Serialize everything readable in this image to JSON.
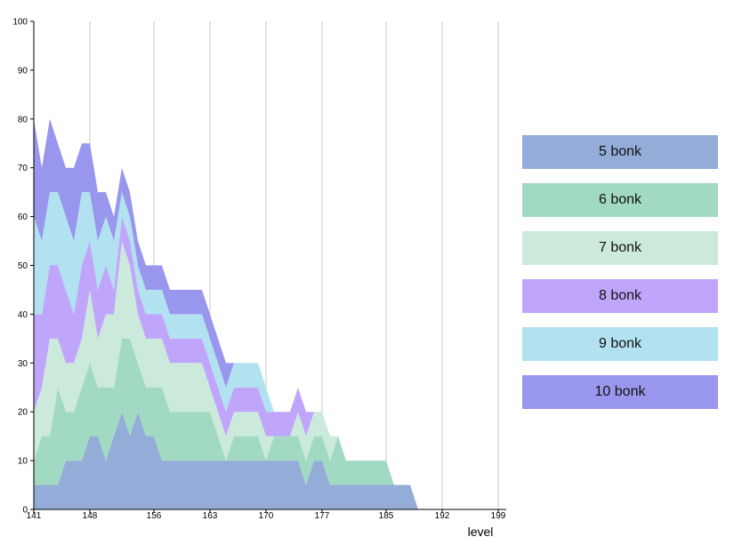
{
  "chart_data": {
    "type": "area",
    "stacked": true,
    "title": "",
    "xlabel": "level",
    "ylabel": "",
    "xlim": [
      141,
      200
    ],
    "ylim": [
      0,
      100
    ],
    "x_ticks": [
      141,
      148,
      156,
      163,
      170,
      177,
      185,
      192,
      199
    ],
    "y_ticks": [
      0,
      10,
      20,
      30,
      40,
      50,
      60,
      70,
      80,
      90,
      100
    ],
    "grid": "vertical lines at x ticks",
    "legend_position": "right",
    "x": [
      141,
      142,
      143,
      144,
      145,
      146,
      147,
      148,
      149,
      150,
      151,
      152,
      153,
      154,
      155,
      156,
      157,
      158,
      159,
      160,
      161,
      162,
      163,
      164,
      165,
      166,
      167,
      168,
      169,
      170,
      171,
      172,
      173,
      174,
      175,
      176,
      177,
      178,
      179,
      180,
      181,
      182,
      183,
      184,
      185,
      186,
      187,
      188,
      189
    ],
    "series": [
      {
        "name": "5 bonk",
        "color": "#93acd8",
        "values": [
          5,
          5,
          5,
          5,
          10,
          10,
          10,
          15,
          15,
          10,
          15,
          20,
          15,
          20,
          15,
          15,
          10,
          10,
          10,
          10,
          10,
          10,
          10,
          10,
          10,
          10,
          10,
          10,
          10,
          10,
          10,
          10,
          10,
          10,
          5,
          10,
          10,
          5,
          5,
          5,
          5,
          5,
          5,
          5,
          5,
          5,
          5,
          5,
          0
        ]
      },
      {
        "name": "6 bonk",
        "color": "#a2d9c3",
        "values": [
          5,
          10,
          10,
          20,
          10,
          10,
          15,
          15,
          10,
          15,
          10,
          15,
          20,
          10,
          10,
          10,
          15,
          10,
          10,
          10,
          10,
          10,
          10,
          5,
          0,
          5,
          5,
          5,
          5,
          0,
          5,
          5,
          5,
          5,
          5,
          5,
          5,
          5,
          10,
          5,
          5,
          5,
          5,
          5,
          5,
          0,
          0,
          0,
          0
        ]
      },
      {
        "name": "7 bonk",
        "color": "#cbeadb",
        "values": [
          10,
          10,
          20,
          10,
          10,
          10,
          10,
          15,
          10,
          15,
          15,
          20,
          15,
          10,
          10,
          10,
          10,
          10,
          10,
          10,
          10,
          10,
          5,
          5,
          5,
          5,
          5,
          5,
          5,
          5,
          0,
          0,
          0,
          5,
          5,
          5,
          5,
          5,
          0,
          0,
          0,
          0,
          0,
          0,
          0,
          0,
          0,
          0,
          0
        ]
      },
      {
        "name": "8 bonk",
        "color": "#c0a6fb",
        "values": [
          20,
          15,
          15,
          15,
          15,
          10,
          15,
          10,
          10,
          10,
          5,
          5,
          5,
          5,
          5,
          5,
          5,
          5,
          5,
          5,
          5,
          5,
          5,
          5,
          5,
          5,
          5,
          5,
          5,
          5,
          5,
          5,
          5,
          5,
          5,
          0,
          0,
          0,
          0,
          0,
          0,
          0,
          0,
          0,
          0,
          0,
          0,
          0,
          0
        ]
      },
      {
        "name": "9 bonk",
        "color": "#b2e1f0",
        "values": [
          20,
          15,
          15,
          15,
          15,
          15,
          15,
          10,
          10,
          10,
          10,
          5,
          5,
          5,
          5,
          5,
          5,
          5,
          5,
          5,
          5,
          5,
          5,
          5,
          5,
          5,
          5,
          5,
          5,
          5,
          0,
          0,
          0,
          0,
          0,
          0,
          0,
          0,
          0,
          0,
          0,
          0,
          0,
          0,
          0,
          0,
          0,
          0,
          0
        ]
      },
      {
        "name": "10 bonk",
        "color": "#9997ed",
        "values": [
          20,
          15,
          15,
          10,
          10,
          15,
          10,
          10,
          10,
          5,
          5,
          5,
          5,
          5,
          5,
          5,
          5,
          5,
          5,
          5,
          5,
          5,
          5,
          5,
          5,
          0,
          0,
          0,
          0,
          0,
          0,
          0,
          0,
          0,
          0,
          0,
          0,
          0,
          0,
          0,
          0,
          0,
          0,
          0,
          0,
          0,
          0,
          0,
          0
        ]
      }
    ]
  }
}
